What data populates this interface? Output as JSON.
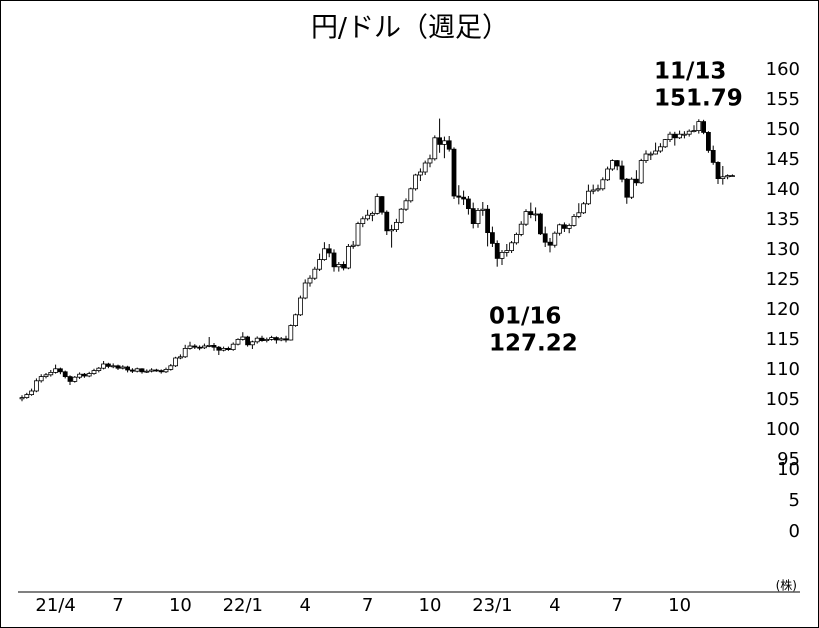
{
  "chart_data": {
    "type": "candlestick",
    "title": "円/ドル（週足）",
    "unit_label": "(株)",
    "ylim": [
      95,
      160
    ],
    "yticks": [
      95,
      100,
      105,
      110,
      115,
      120,
      125,
      130,
      135,
      140,
      145,
      150,
      155,
      160
    ],
    "lower_pane": {
      "ylim": [
        0,
        10
      ],
      "yticks": [
        0,
        5,
        10
      ]
    },
    "up_color": "#ffffff",
    "down_color": "#000000",
    "annotations": [
      {
        "date": "11/13",
        "value": 151.79
      },
      {
        "date": "01/16",
        "value": 127.22
      }
    ],
    "categories": [
      null,
      null,
      null,
      null,
      null,
      null,
      null,
      "21/4",
      null,
      null,
      null,
      null,
      null,
      null,
      null,
      null,
      null,
      null,
      null,
      null,
      "7",
      null,
      null,
      null,
      null,
      null,
      null,
      null,
      null,
      null,
      null,
      null,
      null,
      "10",
      null,
      null,
      null,
      null,
      null,
      null,
      null,
      null,
      null,
      null,
      null,
      null,
      "22/1",
      null,
      null,
      null,
      null,
      null,
      null,
      null,
      null,
      null,
      null,
      null,
      null,
      "4",
      null,
      null,
      null,
      null,
      null,
      null,
      null,
      null,
      null,
      null,
      null,
      null,
      "7",
      null,
      null,
      null,
      null,
      null,
      null,
      null,
      null,
      null,
      null,
      null,
      null,
      "10",
      null,
      null,
      null,
      null,
      null,
      null,
      null,
      null,
      null,
      null,
      null,
      null,
      "23/1",
      null,
      null,
      null,
      null,
      null,
      null,
      null,
      null,
      null,
      null,
      null,
      null,
      "4",
      null,
      null,
      null,
      null,
      null,
      null,
      null,
      null,
      null,
      null,
      null,
      null,
      "7",
      null,
      null,
      null,
      null,
      null,
      null,
      null,
      null,
      null,
      null,
      null,
      null,
      "10",
      null,
      null,
      null,
      null,
      null,
      null,
      null,
      null,
      null,
      null,
      null
    ],
    "candles": [
      [
        105.2,
        105.8,
        104.8,
        105.4
      ],
      [
        105.4,
        106.2,
        105.2,
        105.9
      ],
      [
        105.9,
        106.9,
        105.7,
        106.5
      ],
      [
        106.5,
        108.6,
        106.3,
        108.2
      ],
      [
        108.2,
        109.3,
        107.9,
        108.9
      ],
      [
        108.9,
        109.5,
        108.6,
        109.2
      ],
      [
        109.2,
        110.0,
        108.9,
        109.6
      ],
      [
        109.6,
        110.9,
        109.4,
        110.2
      ],
      [
        110.2,
        110.4,
        109.3,
        109.7
      ],
      [
        109.7,
        109.9,
        108.6,
        108.9
      ],
      [
        108.9,
        109.1,
        107.5,
        108.1
      ],
      [
        108.1,
        109.0,
        107.9,
        108.8
      ],
      [
        108.8,
        109.6,
        108.5,
        109.3
      ],
      [
        109.3,
        109.5,
        108.7,
        109.0
      ],
      [
        109.0,
        109.7,
        108.8,
        109.4
      ],
      [
        109.4,
        110.2,
        109.2,
        109.9
      ],
      [
        109.9,
        110.5,
        109.6,
        110.3
      ],
      [
        110.3,
        111.5,
        110.1,
        111.0
      ],
      [
        111.0,
        111.2,
        110.3,
        110.6
      ],
      [
        110.6,
        111.1,
        110.3,
        110.7
      ],
      [
        110.7,
        110.9,
        110.0,
        110.3
      ],
      [
        110.3,
        110.8,
        110.1,
        110.5
      ],
      [
        110.5,
        110.7,
        109.6,
        110.0
      ],
      [
        110.0,
        110.3,
        109.5,
        109.8
      ],
      [
        109.8,
        110.4,
        109.6,
        110.2
      ],
      [
        110.2,
        110.3,
        109.4,
        109.7
      ],
      [
        109.7,
        110.1,
        109.5,
        109.8
      ],
      [
        109.8,
        110.3,
        109.6,
        110.0
      ],
      [
        110.0,
        110.2,
        109.7,
        109.9
      ],
      [
        109.9,
        110.1,
        109.4,
        109.7
      ],
      [
        109.7,
        110.4,
        109.5,
        110.1
      ],
      [
        110.1,
        111.0,
        109.9,
        110.7
      ],
      [
        110.7,
        112.2,
        110.5,
        112.0
      ],
      [
        112.0,
        112.6,
        111.8,
        112.2
      ],
      [
        112.2,
        114.2,
        112.0,
        113.6
      ],
      [
        113.6,
        114.7,
        113.4,
        114.0
      ],
      [
        114.0,
        114.3,
        113.5,
        113.8
      ],
      [
        113.8,
        114.1,
        113.3,
        113.7
      ],
      [
        113.7,
        114.4,
        113.5,
        114.0
      ],
      [
        114.0,
        115.5,
        113.8,
        114.1
      ],
      [
        114.1,
        114.5,
        113.2,
        113.8
      ],
      [
        113.8,
        114.0,
        112.5,
        113.3
      ],
      [
        113.3,
        113.9,
        113.1,
        113.6
      ],
      [
        113.6,
        113.9,
        113.2,
        113.4
      ],
      [
        113.4,
        114.6,
        113.2,
        114.3
      ],
      [
        114.3,
        115.3,
        114.1,
        115.1
      ],
      [
        115.1,
        116.3,
        114.9,
        115.5
      ],
      [
        115.5,
        115.7,
        113.9,
        114.2
      ],
      [
        114.2,
        114.9,
        113.5,
        114.7
      ],
      [
        114.7,
        115.6,
        114.4,
        115.3
      ],
      [
        115.3,
        115.7,
        114.7,
        114.9
      ],
      [
        114.9,
        115.4,
        114.6,
        115.1
      ],
      [
        115.1,
        115.7,
        114.9,
        115.4
      ],
      [
        115.4,
        115.6,
        114.4,
        115.0
      ],
      [
        115.0,
        115.5,
        114.8,
        115.2
      ],
      [
        115.2,
        115.7,
        114.6,
        115.0
      ],
      [
        115.0,
        117.6,
        114.9,
        117.4
      ],
      [
        117.4,
        119.4,
        117.2,
        119.2
      ],
      [
        119.2,
        122.4,
        119.0,
        122.0
      ],
      [
        122.0,
        125.1,
        121.8,
        124.5
      ],
      [
        124.5,
        125.8,
        123.9,
        125.3
      ],
      [
        125.3,
        127.2,
        125.0,
        126.8
      ],
      [
        126.8,
        129.4,
        126.5,
        128.4
      ],
      [
        128.4,
        131.3,
        128.2,
        130.2
      ],
      [
        130.2,
        131.0,
        128.8,
        129.5
      ],
      [
        129.5,
        130.1,
        126.4,
        127.2
      ],
      [
        127.2,
        128.0,
        126.4,
        127.6
      ],
      [
        127.6,
        128.1,
        126.6,
        127.0
      ],
      [
        127.0,
        131.0,
        126.8,
        130.6
      ],
      [
        130.6,
        131.5,
        130.2,
        130.8
      ],
      [
        130.8,
        134.7,
        130.6,
        134.4
      ],
      [
        134.4,
        135.6,
        133.8,
        135.2
      ],
      [
        135.2,
        136.7,
        134.9,
        135.8
      ],
      [
        135.8,
        136.4,
        134.8,
        136.1
      ],
      [
        136.1,
        139.4,
        135.9,
        138.9
      ],
      [
        138.9,
        139.0,
        135.9,
        136.3
      ],
      [
        136.3,
        136.6,
        132.5,
        133.2
      ],
      [
        133.2,
        134.2,
        130.4,
        133.4
      ],
      [
        133.4,
        135.2,
        133.0,
        134.6
      ],
      [
        134.6,
        137.0,
        134.4,
        136.8
      ],
      [
        136.8,
        138.6,
        136.5,
        138.2
      ],
      [
        138.2,
        140.4,
        137.9,
        140.2
      ],
      [
        140.2,
        142.7,
        139.9,
        142.5
      ],
      [
        142.5,
        143.6,
        141.5,
        143.0
      ],
      [
        143.0,
        144.9,
        142.5,
        144.5
      ],
      [
        144.5,
        145.9,
        143.8,
        145.2
      ],
      [
        145.2,
        149.1,
        144.9,
        148.7
      ],
      [
        148.7,
        151.9,
        146.2,
        147.6
      ],
      [
        147.6,
        148.9,
        145.3,
        148.2
      ],
      [
        148.2,
        149.0,
        146.4,
        146.8
      ],
      [
        146.8,
        147.1,
        138.5,
        139.0
      ],
      [
        139.0,
        140.8,
        137.6,
        138.8
      ],
      [
        138.8,
        139.9,
        137.5,
        138.5
      ],
      [
        138.5,
        139.0,
        135.9,
        136.9
      ],
      [
        136.9,
        137.9,
        133.6,
        134.4
      ],
      [
        134.4,
        137.0,
        133.7,
        136.6
      ],
      [
        136.6,
        138.0,
        135.7,
        136.8
      ],
      [
        136.8,
        137.5,
        130.6,
        132.9
      ],
      [
        132.9,
        133.9,
        130.5,
        131.1
      ],
      [
        131.1,
        131.6,
        127.22,
        128.6
      ],
      [
        128.6,
        130.0,
        127.5,
        129.6
      ],
      [
        129.6,
        131.0,
        128.9,
        129.9
      ],
      [
        129.9,
        131.5,
        129.5,
        131.2
      ],
      [
        131.2,
        132.9,
        130.9,
        132.6
      ],
      [
        132.6,
        134.8,
        132.3,
        134.3
      ],
      [
        134.3,
        136.8,
        134.0,
        136.4
      ],
      [
        136.4,
        137.9,
        135.3,
        135.9
      ],
      [
        135.9,
        137.1,
        134.8,
        136.0
      ],
      [
        136.0,
        136.2,
        132.5,
        132.7
      ],
      [
        132.7,
        133.9,
        130.5,
        131.3
      ],
      [
        131.3,
        132.0,
        129.6,
        130.8
      ],
      [
        130.8,
        133.1,
        130.4,
        132.8
      ],
      [
        132.8,
        134.4,
        132.4,
        134.2
      ],
      [
        134.2,
        134.6,
        133.0,
        133.6
      ],
      [
        133.6,
        134.4,
        132.8,
        134.1
      ],
      [
        134.1,
        136.0,
        133.9,
        135.6
      ],
      [
        135.6,
        137.8,
        135.3,
        136.2
      ],
      [
        136.2,
        138.0,
        136.0,
        137.7
      ],
      [
        137.7,
        140.9,
        137.5,
        139.8
      ],
      [
        139.8,
        140.9,
        139.3,
        140.0
      ],
      [
        140.0,
        140.9,
        139.7,
        140.2
      ],
      [
        140.2,
        142.1,
        139.9,
        141.7
      ],
      [
        141.7,
        143.9,
        141.5,
        143.5
      ],
      [
        143.5,
        145.1,
        143.2,
        144.9
      ],
      [
        144.9,
        145.0,
        143.3,
        144.0
      ],
      [
        144.0,
        144.9,
        141.3,
        141.8
      ],
      [
        141.8,
        142.0,
        137.7,
        138.8
      ],
      [
        138.8,
        142.1,
        138.5,
        141.8
      ],
      [
        141.8,
        143.3,
        140.7,
        141.2
      ],
      [
        141.2,
        145.2,
        141.0,
        144.9
      ],
      [
        144.9,
        146.6,
        144.5,
        146.0
      ],
      [
        146.0,
        146.4,
        145.0,
        146.0
      ],
      [
        146.0,
        147.9,
        145.9,
        146.5
      ],
      [
        146.5,
        147.8,
        146.2,
        147.2
      ],
      [
        147.2,
        148.5,
        147.0,
        148.4
      ],
      [
        148.4,
        149.7,
        148.0,
        149.3
      ],
      [
        149.3,
        149.7,
        147.4,
        148.7
      ],
      [
        148.7,
        149.9,
        148.5,
        149.3
      ],
      [
        149.3,
        149.8,
        148.6,
        149.3
      ],
      [
        149.3,
        150.1,
        148.9,
        149.8
      ],
      [
        149.8,
        150.8,
        149.6,
        149.9
      ],
      [
        149.9,
        151.79,
        149.4,
        151.4
      ],
      [
        151.4,
        151.7,
        149.3,
        149.6
      ],
      [
        149.6,
        149.8,
        146.2,
        146.6
      ],
      [
        146.6,
        147.4,
        144.2,
        144.6
      ],
      [
        144.6,
        144.8,
        141.0,
        141.9
      ],
      [
        141.9,
        144.0,
        140.9,
        142.2
      ],
      [
        142.2,
        142.6,
        141.8,
        142.4
      ],
      [
        142.4,
        142.6,
        142.2,
        142.4
      ]
    ]
  }
}
